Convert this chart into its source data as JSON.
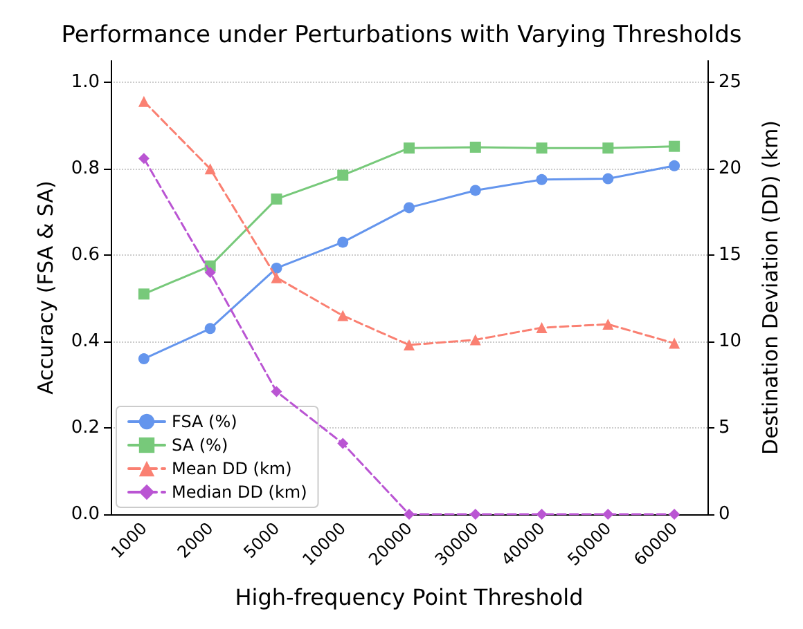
{
  "chart_data": {
    "type": "line",
    "title": "Performance under Perturbations with Varying Thresholds",
    "xlabel": "High-frequency Point Threshold",
    "ylabel": "Accuracy (FSA & SA)",
    "y2label": "Destination Deviation (DD) (km)",
    "categories": [
      "1000",
      "2000",
      "5000",
      "10000",
      "20000",
      "30000",
      "40000",
      "50000",
      "60000"
    ],
    "series": [
      {
        "name": "FSA (%)",
        "color": "#6495ed",
        "marker": "circle",
        "line_style": "solid",
        "values": [
          0.36,
          0.43,
          0.57,
          0.63,
          0.71,
          0.75,
          0.775,
          0.777,
          0.807
        ]
      },
      {
        "name": "SA (%)",
        "color": "#77c97a",
        "marker": "square",
        "line_style": "solid",
        "values": [
          0.51,
          0.575,
          0.73,
          0.785,
          0.848,
          0.85,
          0.848,
          0.848,
          0.852
        ]
      },
      {
        "name": "Mean DD (km)",
        "color": "#fa8072",
        "marker": "triangle",
        "line_style": "dashed",
        "axis": "y2",
        "values": [
          23.9,
          20.0,
          13.7,
          11.5,
          9.8,
          10.1,
          10.8,
          11.0,
          9.9
        ]
      },
      {
        "name": "Median DD (km)",
        "color": "#ba55d3",
        "marker": "diamond",
        "line_style": "dashed",
        "axis": "y2",
        "values": [
          20.6,
          14.0,
          7.1,
          4.1,
          0,
          0,
          0,
          0,
          0
        ]
      }
    ],
    "ylim": [
      0,
      1.05
    ],
    "yticks": [
      {
        "value": 0,
        "label": "0.0"
      },
      0.2,
      0.4,
      0.6,
      0.8,
      {
        "value": 1,
        "label": "1.0"
      }
    ],
    "y2lim": [
      0,
      26.25
    ],
    "y2ticks": [
      0,
      5,
      10,
      15,
      20,
      25
    ],
    "grid": "y",
    "legend": "bottom left"
  }
}
